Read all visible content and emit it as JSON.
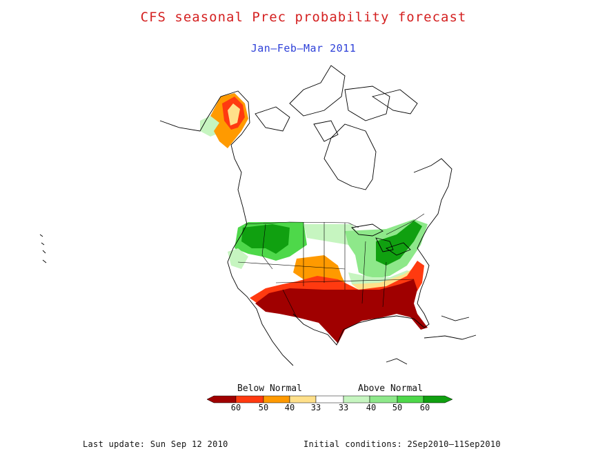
{
  "title": "CFS seasonal Prec probability forecast",
  "subtitle": "Jan—Feb—Mar 2011",
  "legend": {
    "below_label": "Below Normal",
    "above_label": "Above Normal",
    "tick_labels": [
      "60",
      "50",
      "40",
      "33",
      "33",
      "40",
      "50",
      "60"
    ],
    "colors": {
      "below_60": "#a00000",
      "below_50": "#ff3a10",
      "below_40": "#ff9a00",
      "below_33": "#ffe08a",
      "normal": "#ffffff",
      "above_33": "#c6f5c0",
      "above_40": "#8ee88a",
      "above_50": "#4ed84a",
      "above_60": "#10a010"
    }
  },
  "footer": {
    "last_update": "Last update: Sun Sep 12 2010",
    "initial_conditions": "Initial conditions: 2Sep2010—11Sep2010"
  }
}
